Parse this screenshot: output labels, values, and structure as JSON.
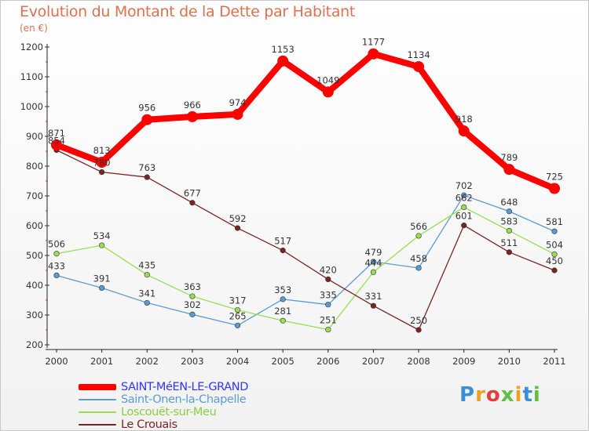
{
  "header": {
    "title": "Evolution du Montant de la Dette par Habitant",
    "subtitle": "(en €)"
  },
  "logo": {
    "text": "Proxiti",
    "letter_colors": [
      "#3a8fd8",
      "#f0a020",
      "#e04040",
      "#60c040",
      "#f0a020",
      "#3a8fd8",
      "#60c040"
    ]
  },
  "chart_data": {
    "type": "line",
    "title": "Evolution du Montant de la Dette par Habitant",
    "subtitle": "(en €)",
    "xlabel": "",
    "ylabel": "",
    "x": [
      2000,
      2001,
      2002,
      2003,
      2004,
      2005,
      2006,
      2007,
      2008,
      2009,
      2010,
      2011
    ],
    "ylim": [
      200,
      1200
    ],
    "yticks": [
      200,
      300,
      400,
      500,
      600,
      700,
      800,
      900,
      1000,
      1100,
      1200
    ],
    "grid": false,
    "legend_position": "bottom-left",
    "series": [
      {
        "name": "SAINT-MéEN-LE-GRAND",
        "color": "#ff0000",
        "legend_color": "#3333ff",
        "emphasis": true,
        "values": [
          871,
          813,
          956,
          966,
          974,
          1153,
          1049,
          1177,
          1134,
          918,
          789,
          725
        ]
      },
      {
        "name": "Saint-Onen-la-Chapelle",
        "color": "#5b9bd5",
        "legend_color": "#5b9bd5",
        "emphasis": false,
        "values": [
          433,
          391,
          341,
          302,
          265,
          353,
          335,
          479,
          458,
          702,
          648,
          581
        ]
      },
      {
        "name": "Loscouët-sur-Meu",
        "color": "#99dd55",
        "legend_color": "#8ccc44",
        "emphasis": false,
        "values": [
          506,
          534,
          435,
          363,
          317,
          281,
          251,
          444,
          566,
          662,
          583,
          504
        ]
      },
      {
        "name": "Le Crouais",
        "color": "#7b2323",
        "legend_color": "#7b2323",
        "emphasis": false,
        "values": [
          854,
          780,
          763,
          677,
          592,
          517,
          420,
          331,
          250,
          601,
          511,
          450
        ]
      }
    ]
  }
}
